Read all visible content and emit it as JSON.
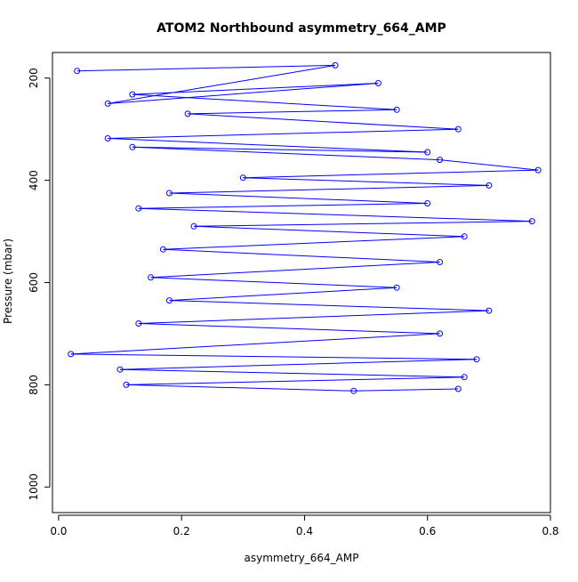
{
  "chart_data": {
    "type": "scatter",
    "title": "ATOM2 Northbound asymmetry_664_AMP",
    "xlabel": "asymmetry_664_AMP",
    "ylabel": "Pressure (mbar)",
    "xlim": [
      -0.01,
      0.8
    ],
    "ylim": [
      1050,
      150
    ],
    "y_reversed": true,
    "x_ticks": [
      0.0,
      0.2,
      0.4,
      0.6,
      0.8
    ],
    "x_tick_labels": [
      "0.0",
      "0.2",
      "0.4",
      "0.6",
      "0.8"
    ],
    "y_ticks": [
      200,
      400,
      600,
      800,
      1000
    ],
    "y_tick_labels": [
      "200",
      "400",
      "600",
      "800",
      "1000"
    ],
    "grid": false,
    "connect_points": true,
    "marker": "open-circle",
    "series_color": "#0000FF",
    "series": [
      {
        "points": [
          {
            "x": 0.03,
            "y": 186
          },
          {
            "x": 0.45,
            "y": 175
          },
          {
            "x": 0.08,
            "y": 250
          },
          {
            "x": 0.52,
            "y": 210
          },
          {
            "x": 0.12,
            "y": 232
          },
          {
            "x": 0.55,
            "y": 262
          },
          {
            "x": 0.21,
            "y": 270
          },
          {
            "x": 0.65,
            "y": 300
          },
          {
            "x": 0.08,
            "y": 318
          },
          {
            "x": 0.6,
            "y": 345
          },
          {
            "x": 0.12,
            "y": 335
          },
          {
            "x": 0.62,
            "y": 360
          },
          {
            "x": 0.78,
            "y": 380
          },
          {
            "x": 0.3,
            "y": 395
          },
          {
            "x": 0.7,
            "y": 410
          },
          {
            "x": 0.18,
            "y": 425
          },
          {
            "x": 0.6,
            "y": 445
          },
          {
            "x": 0.13,
            "y": 455
          },
          {
            "x": 0.77,
            "y": 480
          },
          {
            "x": 0.22,
            "y": 490
          },
          {
            "x": 0.66,
            "y": 510
          },
          {
            "x": 0.17,
            "y": 535
          },
          {
            "x": 0.62,
            "y": 560
          },
          {
            "x": 0.15,
            "y": 590
          },
          {
            "x": 0.55,
            "y": 610
          },
          {
            "x": 0.18,
            "y": 635
          },
          {
            "x": 0.7,
            "y": 655
          },
          {
            "x": 0.13,
            "y": 680
          },
          {
            "x": 0.62,
            "y": 700
          },
          {
            "x": 0.02,
            "y": 740
          },
          {
            "x": 0.68,
            "y": 750
          },
          {
            "x": 0.1,
            "y": 770
          },
          {
            "x": 0.66,
            "y": 785
          },
          {
            "x": 0.11,
            "y": 800
          },
          {
            "x": 0.48,
            "y": 812
          },
          {
            "x": 0.65,
            "y": 808
          }
        ]
      }
    ]
  }
}
